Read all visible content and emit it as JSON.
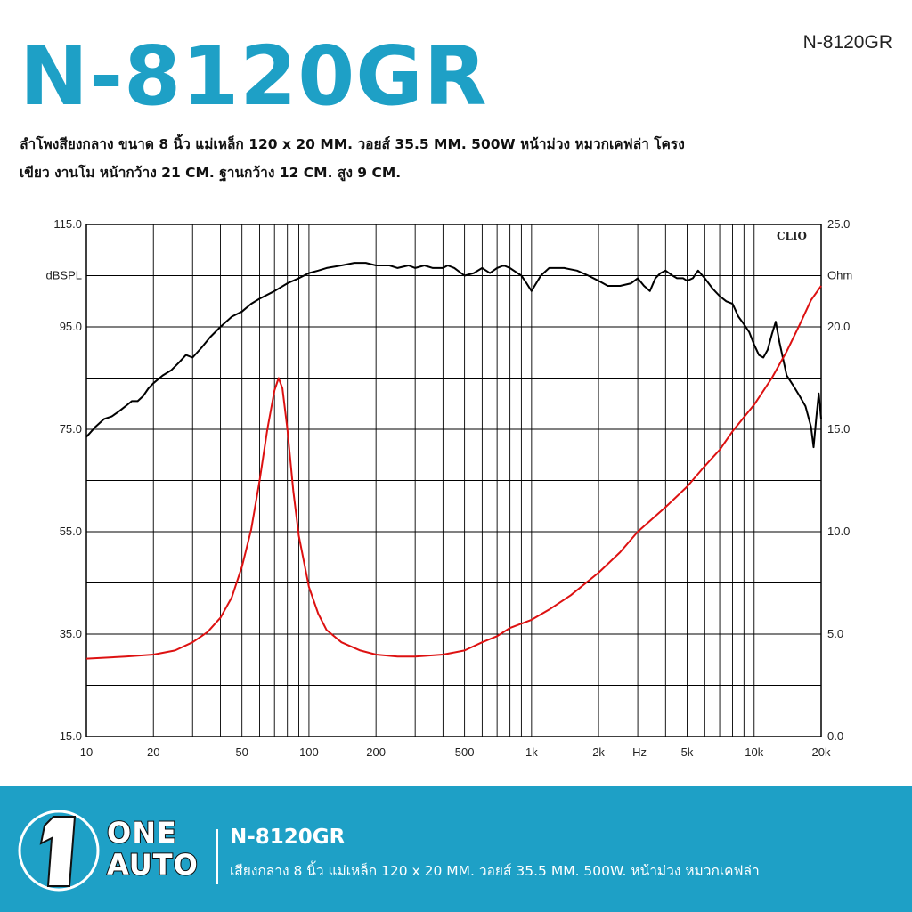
{
  "header": {
    "model_title": "N-8120GR",
    "model_corner": "N-8120GR",
    "description_line1": "ลำโพงสียงกลาง ขนาด 8 นิ้ว แม่เหล็ก 120 x 20 MM. วอยส์ 35.5 MM. 500W หน้าม่วง หมวกเคฟล่า โครง",
    "description_line2": "เขียว งานโม หน้ากว้าง 21 CM. ฐานกว้าง 12 CM. สูง 9 CM."
  },
  "chart_data": {
    "type": "line",
    "watermark": "CLIO",
    "x_scale": "log",
    "x_range": [
      10,
      20000
    ],
    "x_ticks": [
      {
        "value": 10,
        "label": "10"
      },
      {
        "value": 20,
        "label": "20"
      },
      {
        "value": 50,
        "label": "50"
      },
      {
        "value": 100,
        "label": "100"
      },
      {
        "value": 200,
        "label": "200"
      },
      {
        "value": 500,
        "label": "500"
      },
      {
        "value": 1000,
        "label": "1k"
      },
      {
        "value": 2000,
        "label": "2k"
      },
      {
        "value": 5000,
        "label": "5k"
      },
      {
        "value": 10000,
        "label": "10k"
      },
      {
        "value": 20000,
        "label": "20k"
      }
    ],
    "x_unit_label": "Hz",
    "y_left": {
      "label": "dBSPL",
      "range": [
        15,
        115
      ],
      "ticks": [
        {
          "value": 115,
          "label": "115.0"
        },
        {
          "value": 95,
          "label": "95.0"
        },
        {
          "value": 75,
          "label": "75.0"
        },
        {
          "value": 55,
          "label": "55.0"
        },
        {
          "value": 35,
          "label": "35.0"
        },
        {
          "value": 15,
          "label": "15.0"
        }
      ]
    },
    "y_right": {
      "label": "Ohm",
      "range": [
        0,
        25
      ],
      "ticks": [
        {
          "value": 25,
          "label": "25.0"
        },
        {
          "value": 20,
          "label": "20.0"
        },
        {
          "value": 15,
          "label": "15.0"
        },
        {
          "value": 10,
          "label": "10.0"
        },
        {
          "value": 5,
          "label": "5.0"
        },
        {
          "value": 0,
          "label": "0.0"
        }
      ]
    },
    "grid": true,
    "series": [
      {
        "axis": "left",
        "color": "#000000",
        "points": [
          [
            10,
            73.5
          ],
          [
            11,
            75.5
          ],
          [
            12,
            77
          ],
          [
            13,
            77.5
          ],
          [
            14,
            78.5
          ],
          [
            15,
            79.5
          ],
          [
            16,
            80.5
          ],
          [
            17,
            80.5
          ],
          [
            18,
            81.5
          ],
          [
            19,
            83
          ],
          [
            20,
            84
          ],
          [
            22,
            85.5
          ],
          [
            24,
            86.5
          ],
          [
            26,
            88
          ],
          [
            28,
            89.5
          ],
          [
            30,
            89
          ],
          [
            33,
            91
          ],
          [
            36,
            93
          ],
          [
            40,
            95
          ],
          [
            45,
            97
          ],
          [
            50,
            98
          ],
          [
            55,
            99.5
          ],
          [
            60,
            100.5
          ],
          [
            70,
            102
          ],
          [
            80,
            103.5
          ],
          [
            90,
            104.5
          ],
          [
            100,
            105.5
          ],
          [
            110,
            106
          ],
          [
            120,
            106.5
          ],
          [
            140,
            107
          ],
          [
            160,
            107.5
          ],
          [
            180,
            107.5
          ],
          [
            200,
            107
          ],
          [
            230,
            107
          ],
          [
            250,
            106.5
          ],
          [
            280,
            107
          ],
          [
            300,
            106.5
          ],
          [
            330,
            107
          ],
          [
            360,
            106.5
          ],
          [
            400,
            106.5
          ],
          [
            420,
            107
          ],
          [
            450,
            106.5
          ],
          [
            500,
            105
          ],
          [
            550,
            105.5
          ],
          [
            600,
            106.5
          ],
          [
            650,
            105.5
          ],
          [
            700,
            106.5
          ],
          [
            750,
            107
          ],
          [
            800,
            106.5
          ],
          [
            900,
            105
          ],
          [
            950,
            103.5
          ],
          [
            1000,
            102
          ],
          [
            1100,
            105
          ],
          [
            1200,
            106.5
          ],
          [
            1400,
            106.5
          ],
          [
            1600,
            106
          ],
          [
            1800,
            105
          ],
          [
            2000,
            104
          ],
          [
            2200,
            103
          ],
          [
            2500,
            103
          ],
          [
            2800,
            103.5
          ],
          [
            3000,
            104.5
          ],
          [
            3200,
            103
          ],
          [
            3400,
            102
          ],
          [
            3600,
            104.5
          ],
          [
            3800,
            105.5
          ],
          [
            4000,
            106
          ],
          [
            4300,
            105
          ],
          [
            4500,
            104.5
          ],
          [
            4800,
            104.5
          ],
          [
            5000,
            104
          ],
          [
            5300,
            104.5
          ],
          [
            5600,
            106
          ],
          [
            6000,
            104.5
          ],
          [
            6500,
            102.5
          ],
          [
            7000,
            101
          ],
          [
            7500,
            100
          ],
          [
            8000,
            99.5
          ],
          [
            8500,
            97
          ],
          [
            9000,
            95.5
          ],
          [
            9500,
            94
          ],
          [
            10000,
            91.5
          ],
          [
            10500,
            89.5
          ],
          [
            11000,
            89
          ],
          [
            11500,
            90.5
          ],
          [
            12000,
            93.5
          ],
          [
            12500,
            96
          ],
          [
            13000,
            92
          ],
          [
            14000,
            85.5
          ],
          [
            15000,
            83.5
          ],
          [
            16000,
            81.5
          ],
          [
            17000,
            79.5
          ],
          [
            18000,
            75.5
          ],
          [
            18500,
            71.5
          ],
          [
            19000,
            77
          ],
          [
            19500,
            82
          ],
          [
            20000,
            77
          ]
        ]
      },
      {
        "axis": "right",
        "color": "#dd1111",
        "points": [
          [
            10,
            3.8
          ],
          [
            15,
            3.9
          ],
          [
            20,
            4.0
          ],
          [
            25,
            4.2
          ],
          [
            30,
            4.6
          ],
          [
            35,
            5.1
          ],
          [
            40,
            5.8
          ],
          [
            45,
            6.8
          ],
          [
            50,
            8.3
          ],
          [
            55,
            10.1
          ],
          [
            60,
            12.5
          ],
          [
            65,
            15.0
          ],
          [
            70,
            16.9
          ],
          [
            73,
            17.5
          ],
          [
            76,
            17.0
          ],
          [
            80,
            15.0
          ],
          [
            85,
            12.0
          ],
          [
            90,
            9.8
          ],
          [
            100,
            7.3
          ],
          [
            110,
            6.0
          ],
          [
            120,
            5.2
          ],
          [
            140,
            4.6
          ],
          [
            170,
            4.2
          ],
          [
            200,
            4.0
          ],
          [
            250,
            3.9
          ],
          [
            300,
            3.9
          ],
          [
            400,
            4.0
          ],
          [
            500,
            4.2
          ],
          [
            600,
            4.6
          ],
          [
            700,
            4.9
          ],
          [
            800,
            5.3
          ],
          [
            1000,
            5.7
          ],
          [
            1200,
            6.2
          ],
          [
            1500,
            6.9
          ],
          [
            2000,
            8.0
          ],
          [
            2500,
            9.0
          ],
          [
            3000,
            10.0
          ],
          [
            4000,
            11.2
          ],
          [
            5000,
            12.2
          ],
          [
            6000,
            13.2
          ],
          [
            7000,
            14.0
          ],
          [
            8000,
            14.9
          ],
          [
            10000,
            16.2
          ],
          [
            12000,
            17.5
          ],
          [
            14000,
            18.8
          ],
          [
            16000,
            20.1
          ],
          [
            18000,
            21.3
          ],
          [
            20000,
            22.0
          ]
        ]
      }
    ]
  },
  "footer": {
    "brand_one": "ONE",
    "brand_auto": "AUTO",
    "title": "N-8120GR",
    "description": "เสียงกลาง 8 นิ้ว แม่เหล็ก 120 x 20 MM. วอยส์ 35.5 MM. 500W. หน้าม่วง หมวกเคฟล่า",
    "brand_color": "#1ea0c6"
  }
}
